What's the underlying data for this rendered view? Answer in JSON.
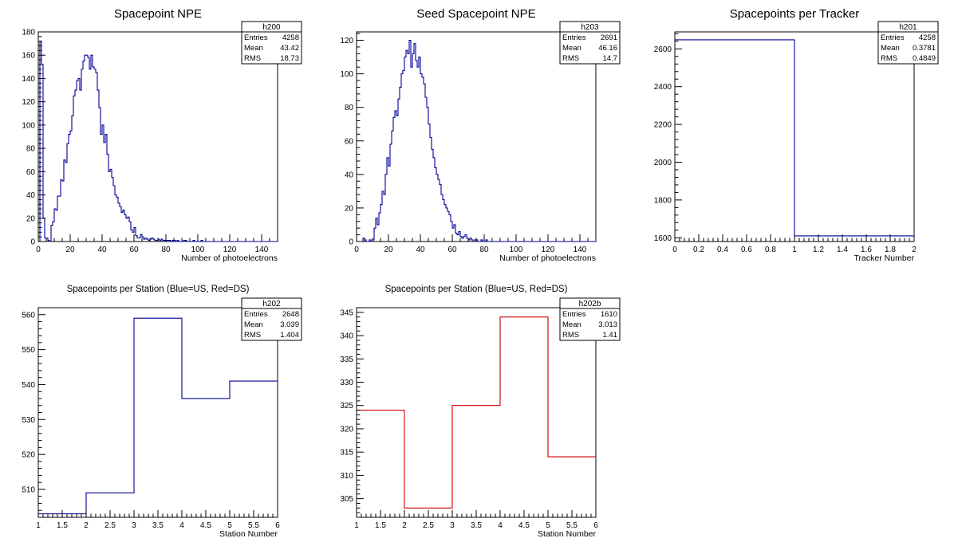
{
  "chart_data": [
    {
      "type": "bar",
      "id": "h200",
      "title": "Spacepoint NPE",
      "xlabel": "Number of photoelectrons",
      "ylabel": "",
      "xlim": [
        0,
        150
      ],
      "ylim": [
        0,
        180
      ],
      "xticks": [
        0,
        20,
        40,
        60,
        80,
        100,
        120,
        140
      ],
      "yticks": [
        0,
        20,
        40,
        60,
        80,
        100,
        120,
        140,
        160,
        180
      ],
      "bin_width": 1,
      "color": "#000099",
      "values": [
        0,
        172,
        152,
        20,
        3,
        3,
        1,
        0,
        14,
        17,
        28,
        27,
        39,
        39,
        53,
        52,
        70,
        68,
        84,
        92,
        95,
        108,
        125,
        130,
        138,
        140,
        130,
        148,
        155,
        160,
        160,
        158,
        148,
        160,
        150,
        148,
        145,
        130,
        115,
        92,
        100,
        85,
        92,
        75,
        60,
        62,
        55,
        48,
        40,
        38,
        33,
        30,
        25,
        27,
        23,
        20,
        21,
        17,
        10,
        8,
        12,
        5,
        3,
        3,
        6,
        4,
        2,
        3,
        2,
        1,
        2,
        3,
        2,
        1,
        1,
        2,
        1,
        2,
        1,
        1,
        1,
        1,
        1,
        0,
        1,
        1,
        0,
        1,
        0,
        0,
        0,
        1,
        1,
        0,
        0,
        0,
        0,
        1,
        0,
        0,
        0,
        0,
        1,
        0,
        0,
        0,
        0,
        0,
        0,
        0,
        0,
        0,
        0,
        0,
        0,
        0,
        0,
        0,
        0,
        0,
        0,
        0,
        0,
        0,
        0,
        0,
        0,
        0,
        0,
        0,
        0,
        0,
        0,
        0,
        0,
        0,
        0,
        0,
        0,
        0,
        0,
        0,
        0,
        0,
        0,
        0,
        0,
        0,
        0,
        0
      ],
      "stats": {
        "name": "h200",
        "rows": [
          {
            "label": "Entries",
            "value": "4258"
          },
          {
            "label": "Mean",
            "value": "43.42"
          },
          {
            "label": "RMS",
            "value": "18.73"
          }
        ]
      }
    },
    {
      "type": "bar",
      "id": "h203",
      "title": "Seed Spacepoint NPE",
      "xlabel": "Number of photoelectrons",
      "ylabel": "",
      "xlim": [
        0,
        150
      ],
      "ylim": [
        0,
        125
      ],
      "xticks": [
        0,
        20,
        40,
        60,
        80,
        100,
        120,
        140
      ],
      "yticks": [
        0,
        20,
        40,
        60,
        80,
        100,
        120
      ],
      "bin_width": 1,
      "color": "#000099",
      "values": [
        0,
        0,
        0,
        0,
        2,
        1,
        0,
        0,
        1,
        0,
        1,
        8,
        14,
        10,
        17,
        22,
        30,
        28,
        40,
        50,
        45,
        58,
        66,
        74,
        78,
        75,
        85,
        92,
        100,
        102,
        110,
        114,
        112,
        120,
        104,
        112,
        118,
        108,
        104,
        110,
        100,
        98,
        94,
        86,
        80,
        70,
        62,
        55,
        50,
        44,
        40,
        37,
        34,
        28,
        25,
        22,
        20,
        18,
        16,
        12,
        8,
        10,
        5,
        4,
        6,
        3,
        2,
        3,
        4,
        2,
        1,
        2,
        1,
        0,
        1,
        1,
        0,
        0,
        1,
        0,
        0,
        1,
        0,
        0,
        0,
        0,
        0,
        0,
        0,
        0,
        0,
        0,
        0,
        0,
        0,
        0,
        0,
        0,
        0,
        0,
        0,
        0,
        0,
        0,
        0,
        0,
        0,
        0,
        0,
        0,
        0,
        0,
        0,
        0,
        0,
        0,
        0,
        0,
        0,
        0,
        0,
        0,
        0,
        0,
        0,
        0,
        0,
        0,
        0,
        0,
        0,
        0,
        0,
        0,
        0,
        0,
        0,
        0,
        0,
        0,
        0,
        0,
        0,
        0,
        0,
        0,
        0,
        0,
        0,
        0
      ],
      "stats": {
        "name": "h203",
        "rows": [
          {
            "label": "Entries",
            "value": "2691"
          },
          {
            "label": "Mean",
            "value": "46.16"
          },
          {
            "label": "RMS",
            "value": "14.7"
          }
        ]
      }
    },
    {
      "type": "bar",
      "id": "h201",
      "title": "Spacepoints per Tracker",
      "xlabel": "Tracker Number",
      "ylabel": "",
      "xlim": [
        0,
        2
      ],
      "ylim": [
        1580,
        2690
      ],
      "xticks": [
        0,
        0.2,
        0.4,
        0.6,
        0.8,
        1,
        1.2,
        1.4,
        1.6,
        1.8,
        2
      ],
      "xtick_labels": [
        "0",
        "0.2",
        "0.4",
        "0.6",
        "0.8",
        "1",
        "1.2",
        "1.4",
        "1.6",
        "1.8",
        "2"
      ],
      "yticks": [
        1600,
        1800,
        2000,
        2200,
        2400,
        2600
      ],
      "x": [
        0,
        1
      ],
      "bin_width": 1,
      "color": "#000099",
      "values": [
        2648,
        1610
      ],
      "stats": {
        "name": "h201",
        "rows": [
          {
            "label": "Entries",
            "value": "4258"
          },
          {
            "label": "Mean",
            "value": "0.3781"
          },
          {
            "label": "RMS",
            "value": "0.4849"
          }
        ]
      }
    },
    {
      "type": "bar",
      "id": "h202",
      "title": "Spacepoints per Station (Blue=US, Red=DS)",
      "xlabel": "Station Number",
      "ylabel": "",
      "xlim": [
        1,
        6
      ],
      "ylim": [
        502,
        562
      ],
      "xticks": [
        1,
        1.5,
        2,
        2.5,
        3,
        3.5,
        4,
        4.5,
        5,
        5.5,
        6
      ],
      "xtick_labels": [
        "1",
        "1.5",
        "2",
        "2.5",
        "3",
        "3.5",
        "4",
        "4.5",
        "5",
        "5.5",
        "6"
      ],
      "yticks": [
        510,
        520,
        530,
        540,
        550,
        560
      ],
      "x": [
        1,
        2,
        3,
        4,
        5
      ],
      "bin_width": 1,
      "color": "#000099",
      "values": [
        503,
        509,
        559,
        536,
        541
      ],
      "stats": {
        "name": "h202",
        "rows": [
          {
            "label": "Entries",
            "value": "2648"
          },
          {
            "label": "Mean",
            "value": "3.039"
          },
          {
            "label": "RMS",
            "value": "1.404"
          }
        ]
      }
    },
    {
      "type": "bar",
      "id": "h202b",
      "title": "Spacepoints per Station (Blue=US, Red=DS)",
      "xlabel": "Station Number",
      "ylabel": "",
      "xlim": [
        1,
        6
      ],
      "ylim": [
        301,
        346
      ],
      "xticks": [
        1,
        1.5,
        2,
        2.5,
        3,
        3.5,
        4,
        4.5,
        5,
        5.5,
        6
      ],
      "xtick_labels": [
        "1",
        "1.5",
        "2",
        "2.5",
        "3",
        "3.5",
        "4",
        "4.5",
        "5",
        "5.5",
        "6"
      ],
      "yticks": [
        305,
        310,
        315,
        320,
        325,
        330,
        335,
        340,
        345
      ],
      "x": [
        1,
        2,
        3,
        4,
        5
      ],
      "bin_width": 1,
      "color": "#cc0000",
      "values": [
        324,
        303,
        325,
        344,
        314
      ],
      "stats": {
        "name": "h202b",
        "rows": [
          {
            "label": "Entries",
            "value": "1610"
          },
          {
            "label": "Mean",
            "value": "3.013"
          },
          {
            "label": "RMS",
            "value": "1.41"
          }
        ]
      }
    }
  ]
}
